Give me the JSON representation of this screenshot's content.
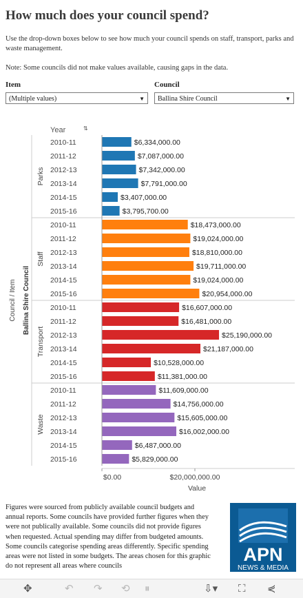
{
  "page": {
    "title": "How much does your council spend?",
    "intro": "Use the drop-down boxes below to see how much your council spends on staff, transport, parks and waste management.",
    "note": "Note: Some councils did not make values available, causing gaps in the data."
  },
  "filters": {
    "item_label": "Item",
    "item_value": "(Multiple values)",
    "council_label": "Council",
    "council_value": "Ballina Shire Council"
  },
  "chart_data": {
    "type": "bar",
    "orientation": "horizontal",
    "year_header": "Year",
    "outer_axis_label": "Council / Item",
    "council": "Ballina Shire Council",
    "x_axis_title": "Value",
    "x_ticks": [
      "$0.00",
      "$20,000,000.00"
    ],
    "xlim": [
      0,
      28000000
    ],
    "groups": [
      {
        "name": "Parks",
        "color": "#1f77b4",
        "years": [
          "2010-11",
          "2011-12",
          "2012-13",
          "2013-14",
          "2014-15",
          "2015-16"
        ],
        "values": [
          6334000,
          7087000,
          7342000,
          7791000,
          3407000,
          3795700
        ],
        "labels": [
          "$6,334,000.00",
          "$7,087,000.00",
          "$7,342,000.00",
          "$7,791,000.00",
          "$3,407,000.00",
          "$3,795,700.00"
        ]
      },
      {
        "name": "Staff",
        "color": "#ff7f0e",
        "years": [
          "2010-11",
          "2011-12",
          "2012-13",
          "2013-14",
          "2014-15",
          "2015-16"
        ],
        "values": [
          18473000,
          19024000,
          18810000,
          19711000,
          19024000,
          20954000
        ],
        "labels": [
          "$18,473,000.00",
          "$19,024,000.00",
          "$18,810,000.00",
          "$19,711,000.00",
          "$19,024,000.00",
          "$20,954,000.00"
        ]
      },
      {
        "name": "Transport",
        "color": "#d62728",
        "years": [
          "2010-11",
          "2011-12",
          "2012-13",
          "2013-14",
          "2014-15",
          "2015-16"
        ],
        "values": [
          16607000,
          16481000,
          25190000,
          21187000,
          10528000,
          11381000
        ],
        "labels": [
          "$16,607,000.00",
          "$16,481,000.00",
          "$25,190,000.00",
          "$21,187,000.00",
          "$10,528,000.00",
          "$11,381,000.00"
        ]
      },
      {
        "name": "Waste",
        "color": "#9467bd",
        "years": [
          "2010-11",
          "2011-12",
          "2012-13",
          "2013-14",
          "2014-15",
          "2015-16"
        ],
        "values": [
          11609000,
          14756000,
          15605000,
          16002000,
          6487000,
          5829000
        ],
        "labels": [
          "$11,609,000.00",
          "$14,756,000.00",
          "$15,605,000.00",
          "$16,002,000.00",
          "$6,487,000.00",
          "$5,829,000.00"
        ]
      }
    ]
  },
  "footnote": "Figures were sourced from publicly available council budgets and annual reports. Some councils have provided further figures when they were not publically available. Some councils did not provide figures when requested. Actual spending may differ from budgeted amounts. Some councils categorise spending areas differently. Specific spending areas were not listed in some budgets. The areas chosen for this graphic do not represent all areas where councils",
  "logo": {
    "main": "APN",
    "sub": "NEWS & MEDIA"
  },
  "toolbar": {
    "icons": [
      "move-icon",
      "undo-icon",
      "redo-icon",
      "revert-icon",
      "pause-icon",
      "download-icon",
      "fullscreen-icon",
      "share-icon"
    ]
  }
}
